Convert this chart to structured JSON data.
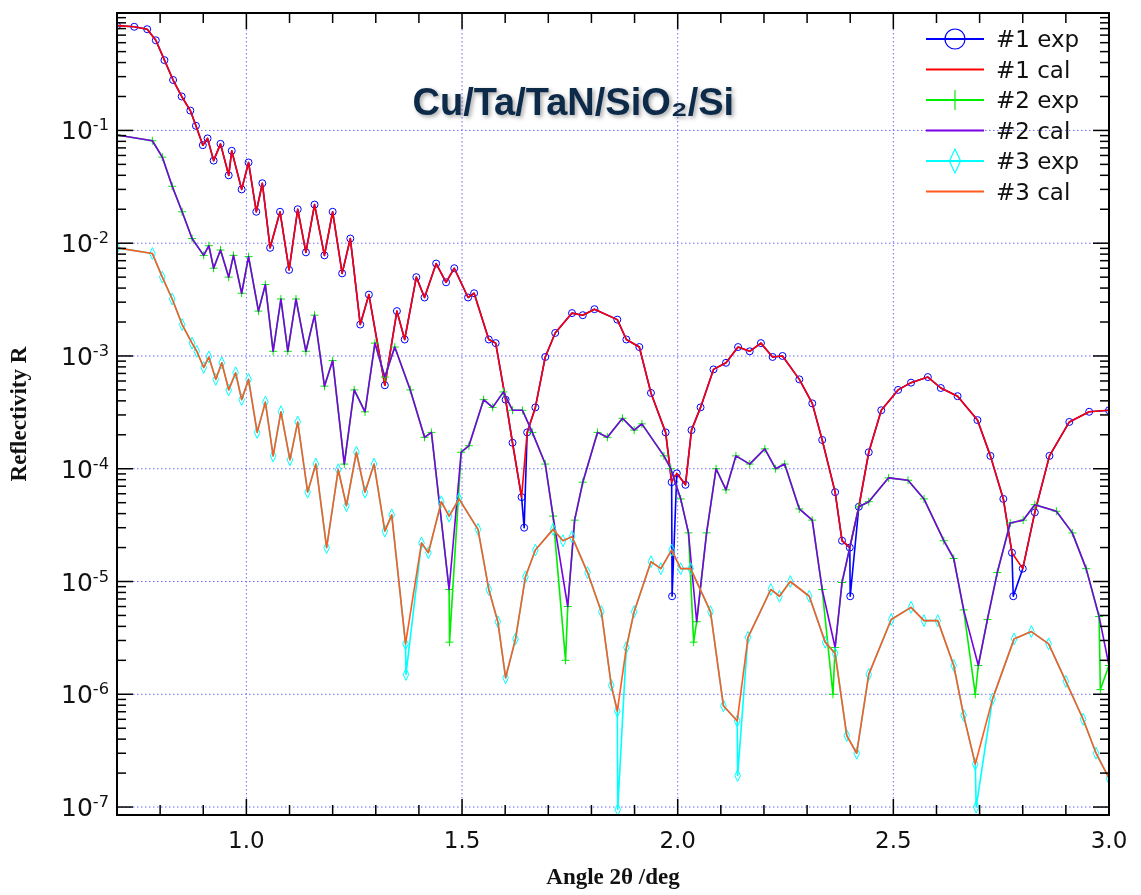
{
  "chart_data": {
    "type": "line",
    "title": "Cu/Ta/TaN/SiO₂/Si",
    "xlabel": "Angle 2θ /deg",
    "ylabel": "Reflectivity R",
    "log": "y",
    "grid": true,
    "legend": "top right",
    "xlim": [
      0.7,
      3.0
    ],
    "ylim": [
      8.5e-08,
      1.1
    ],
    "xticks": [
      {
        "value": 0.7,
        "label": null
      },
      {
        "value": 0.8,
        "label": null
      },
      {
        "value": 0.9,
        "label": null
      },
      {
        "value": 1.0,
        "label": "1.0"
      },
      {
        "value": 1.1,
        "label": null
      },
      {
        "value": 1.2,
        "label": null
      },
      {
        "value": 1.3,
        "label": null
      },
      {
        "value": 1.4,
        "label": null
      },
      {
        "value": 1.5,
        "label": "1.5"
      },
      {
        "value": 1.6,
        "label": null
      },
      {
        "value": 1.7,
        "label": null
      },
      {
        "value": 1.8,
        "label": null
      },
      {
        "value": 1.9,
        "label": null
      },
      {
        "value": 2.0,
        "label": "2.0"
      },
      {
        "value": 2.1,
        "label": null
      },
      {
        "value": 2.2,
        "label": null
      },
      {
        "value": 2.3,
        "label": null
      },
      {
        "value": 2.4,
        "label": null
      },
      {
        "value": 2.5,
        "label": "2.5"
      },
      {
        "value": 2.6,
        "label": null
      },
      {
        "value": 2.7,
        "label": null
      },
      {
        "value": 2.8,
        "label": null
      },
      {
        "value": 2.9,
        "label": null
      },
      {
        "value": 3.0,
        "label": "3.0"
      }
    ],
    "yticks": [
      {
        "value": 1e-07,
        "label": "10$^{-7}$"
      },
      {
        "value": 2e-07,
        "label": null
      },
      {
        "value": 3e-07,
        "label": null
      },
      {
        "value": 4e-07,
        "label": null
      },
      {
        "value": 5e-07,
        "label": null
      },
      {
        "value": 6e-07,
        "label": null
      },
      {
        "value": 7e-07,
        "label": null
      },
      {
        "value": 8e-07,
        "label": null
      },
      {
        "value": 9e-07,
        "label": null
      },
      {
        "value": 1e-06,
        "label": "10$^{-6}$"
      },
      {
        "value": 2e-06,
        "label": null
      },
      {
        "value": 3e-06,
        "label": null
      },
      {
        "value": 4e-06,
        "label": null
      },
      {
        "value": 5e-06,
        "label": null
      },
      {
        "value": 6e-06,
        "label": null
      },
      {
        "value": 7e-06,
        "label": null
      },
      {
        "value": 8e-06,
        "label": null
      },
      {
        "value": 9e-06,
        "label": null
      },
      {
        "value": 1e-05,
        "label": "10$^{-5}$"
      },
      {
        "value": 2e-05,
        "label": null
      },
      {
        "value": 3e-05,
        "label": null
      },
      {
        "value": 4e-05,
        "label": null
      },
      {
        "value": 5e-05,
        "label": null
      },
      {
        "value": 6e-05,
        "label": null
      },
      {
        "value": 7e-05,
        "label": null
      },
      {
        "value": 8e-05,
        "label": null
      },
      {
        "value": 9e-05,
        "label": null
      },
      {
        "value": 0.0001,
        "label": "10$^{-4}$"
      },
      {
        "value": 0.0002,
        "label": null
      },
      {
        "value": 0.0003,
        "label": null
      },
      {
        "value": 0.0004,
        "label": null
      },
      {
        "value": 0.0005,
        "label": null
      },
      {
        "value": 0.0006,
        "label": null
      },
      {
        "value": 0.0007,
        "label": null
      },
      {
        "value": 0.0008,
        "label": null
      },
      {
        "value": 0.0009,
        "label": null
      },
      {
        "value": 0.001,
        "label": "10$^{-3}$"
      },
      {
        "value": 0.002,
        "label": null
      },
      {
        "value": 0.003,
        "label": null
      },
      {
        "value": 0.004,
        "label": null
      },
      {
        "value": 0.005,
        "label": null
      },
      {
        "value": 0.006,
        "label": null
      },
      {
        "value": 0.007,
        "label": null
      },
      {
        "value": 0.008,
        "label": null
      },
      {
        "value": 0.009,
        "label": null
      },
      {
        "value": 0.01,
        "label": "10$^{-2}$"
      },
      {
        "value": 0.02,
        "label": null
      },
      {
        "value": 0.03,
        "label": null
      },
      {
        "value": 0.04,
        "label": null
      },
      {
        "value": 0.05,
        "label": null
      },
      {
        "value": 0.06,
        "label": null
      },
      {
        "value": 0.07,
        "label": null
      },
      {
        "value": 0.08,
        "label": null
      },
      {
        "value": 0.09,
        "label": null
      },
      {
        "value": 0.1,
        "label": "10$^{-1}$"
      },
      {
        "value": 0.2,
        "label": null
      },
      {
        "value": 0.3,
        "label": null
      },
      {
        "value": 0.4,
        "label": null
      },
      {
        "value": 0.5,
        "label": null
      },
      {
        "value": 0.6,
        "label": null
      },
      {
        "value": 0.7,
        "label": null
      },
      {
        "value": 0.8,
        "label": null
      },
      {
        "value": 0.9,
        "label": null
      },
      {
        "value": 1,
        "label": null
      }
    ],
    "series": [
      {
        "name": "#1 exp",
        "color": "#0000ff",
        "marker": "circle",
        "x": [
          0.7,
          0.74,
          0.77,
          0.79,
          0.81,
          0.83,
          0.85,
          0.87,
          0.883,
          0.899,
          0.91,
          0.924,
          0.94,
          0.959,
          0.966,
          0.989,
          1.005,
          1.023,
          1.037,
          1.055,
          1.078,
          1.099,
          1.119,
          1.138,
          1.158,
          1.181,
          1.2,
          1.222,
          1.241,
          1.264,
          1.284,
          1.321,
          1.349,
          1.367,
          1.394,
          1.413,
          1.44,
          1.463,
          1.482,
          1.514,
          1.528,
          1.562,
          1.578,
          1.601,
          1.617,
          1.638,
          1.644,
          1.651,
          1.67,
          1.693,
          1.716,
          1.755,
          1.78,
          1.807,
          1.86,
          1.881,
          1.911,
          1.938,
          1.972,
          1.986,
          1.987,
          1.998,
          2.018,
          2.032,
          2.053,
          2.083,
          2.112,
          2.14,
          2.167,
          2.193,
          2.22,
          2.243,
          2.282,
          2.312,
          2.335,
          2.365,
          2.381,
          2.399,
          2.4,
          2.42,
          2.443,
          2.472,
          2.511,
          2.541,
          2.58,
          2.61,
          2.649,
          2.695,
          2.725,
          2.755,
          2.775,
          2.778,
          2.8,
          2.828,
          2.862,
          2.908,
          2.954,
          3.0
        ],
        "values": [
          0.85,
          0.83,
          0.79,
          0.63,
          0.42,
          0.28,
          0.2,
          0.15,
          0.11,
          0.074,
          0.085,
          0.054,
          0.076,
          0.04,
          0.066,
          0.03,
          0.052,
          0.019,
          0.034,
          0.0091,
          0.019,
          0.0058,
          0.02,
          0.0083,
          0.022,
          0.0078,
          0.019,
          0.0054,
          0.011,
          0.0019,
          0.0035,
          0.00055,
          0.0025,
          0.0014,
          0.005,
          0.0033,
          0.0066,
          0.0045,
          0.006,
          0.0033,
          0.0036,
          0.0014,
          0.0013,
          0.00041,
          0.00017,
          5.6e-05,
          3e-05,
          0.00021,
          0.00035,
          0.00098,
          0.0016,
          0.0024,
          0.0023,
          0.0026,
          0.0021,
          0.0014,
          0.0012,
          0.00047,
          0.00021,
          7.6e-05,
          7.4e-06,
          9.1e-05,
          7.2e-05,
          0.00022,
          0.00035,
          0.00076,
          0.00087,
          0.0012,
          0.0011,
          0.0013,
          0.00098,
          0.001,
          0.00062,
          0.00038,
          0.00018,
          6.2e-05,
          2.3e-05,
          2e-05,
          7.4e-06,
          4.6e-05,
          0.00014,
          0.00033,
          0.0005,
          0.00058,
          0.00065,
          0.00052,
          0.00044,
          0.00027,
          0.00013,
          5.4e-05,
          1.8e-05,
          7.4e-06,
          1.3e-05,
          4.1e-05,
          0.00013,
          0.00026,
          0.00032,
          0.00033
        ]
      },
      {
        "name": "#1 cal",
        "color": "#ff0000",
        "marker": "none",
        "x": [
          0.7,
          0.74,
          0.77,
          0.79,
          0.81,
          0.83,
          0.85,
          0.87,
          0.883,
          0.899,
          0.91,
          0.924,
          0.94,
          0.959,
          0.966,
          0.989,
          1.005,
          1.023,
          1.037,
          1.055,
          1.078,
          1.099,
          1.119,
          1.138,
          1.158,
          1.181,
          1.2,
          1.222,
          1.241,
          1.264,
          1.284,
          1.321,
          1.349,
          1.367,
          1.394,
          1.413,
          1.44,
          1.463,
          1.482,
          1.514,
          1.528,
          1.562,
          1.578,
          1.601,
          1.617,
          1.638,
          1.651,
          1.67,
          1.693,
          1.716,
          1.755,
          1.78,
          1.807,
          1.86,
          1.881,
          1.911,
          1.938,
          1.972,
          1.986,
          1.998,
          2.018,
          2.032,
          2.053,
          2.083,
          2.112,
          2.14,
          2.167,
          2.193,
          2.22,
          2.243,
          2.282,
          2.312,
          2.335,
          2.365,
          2.381,
          2.399,
          2.42,
          2.443,
          2.472,
          2.511,
          2.541,
          2.58,
          2.61,
          2.649,
          2.695,
          2.725,
          2.755,
          2.775,
          2.8,
          2.828,
          2.862,
          2.908,
          2.954,
          3.0
        ],
        "values": [
          0.85,
          0.83,
          0.79,
          0.63,
          0.42,
          0.28,
          0.2,
          0.15,
          0.11,
          0.074,
          0.085,
          0.054,
          0.076,
          0.04,
          0.066,
          0.03,
          0.052,
          0.019,
          0.034,
          0.0091,
          0.019,
          0.0058,
          0.02,
          0.0083,
          0.022,
          0.0078,
          0.019,
          0.0054,
          0.011,
          0.0019,
          0.0035,
          0.00055,
          0.0025,
          0.0014,
          0.005,
          0.0033,
          0.0066,
          0.0045,
          0.006,
          0.0033,
          0.0036,
          0.0014,
          0.0013,
          0.00041,
          0.00017,
          5.6e-05,
          0.00021,
          0.00035,
          0.00098,
          0.0016,
          0.0024,
          0.0023,
          0.0026,
          0.0021,
          0.0014,
          0.0012,
          0.00047,
          0.00021,
          7.6e-05,
          9.1e-05,
          7.2e-05,
          0.00022,
          0.00035,
          0.00076,
          0.00087,
          0.0012,
          0.0011,
          0.0013,
          0.00098,
          0.001,
          0.00062,
          0.00038,
          0.00018,
          6.2e-05,
          2.3e-05,
          2e-05,
          4.6e-05,
          0.00014,
          0.00033,
          0.0005,
          0.00058,
          0.00065,
          0.00052,
          0.00044,
          0.00027,
          0.00013,
          5.4e-05,
          1.8e-05,
          1.3e-05,
          4.1e-05,
          0.00013,
          0.00026,
          0.00032,
          0.00033
        ]
      },
      {
        "name": "#2 exp",
        "color": "#00ee00",
        "marker": "cross",
        "x": [
          0.7,
          0.782,
          0.805,
          0.828,
          0.851,
          0.874,
          0.901,
          0.913,
          0.924,
          0.94,
          0.959,
          0.97,
          0.989,
          1.005,
          1.028,
          1.044,
          1.062,
          1.08,
          1.096,
          1.115,
          1.138,
          1.158,
          1.181,
          1.2,
          1.227,
          1.25,
          1.275,
          1.298,
          1.321,
          1.344,
          1.38,
          1.413,
          1.429,
          1.47,
          1.471,
          1.498,
          1.516,
          1.55,
          1.571,
          1.596,
          1.617,
          1.64,
          1.663,
          1.693,
          1.711,
          1.74,
          1.745,
          1.761,
          1.78,
          1.814,
          1.837,
          1.872,
          1.899,
          1.917,
          1.968,
          1.984,
          2.007,
          2.025,
          2.037,
          2.044,
          2.067,
          2.089,
          2.112,
          2.135,
          2.167,
          2.202,
          2.227,
          2.248,
          2.282,
          2.312,
          2.335,
          2.36,
          2.365,
          2.381,
          2.42,
          2.443,
          2.489,
          2.534,
          2.571,
          2.617,
          2.64,
          2.663,
          2.69,
          2.697,
          2.718,
          2.741,
          2.771,
          2.801,
          2.828,
          2.878,
          2.915,
          2.947,
          2.977,
          2.98,
          3.0
        ],
        "values": [
          0.091,
          0.081,
          0.058,
          0.032,
          0.019,
          0.011,
          0.0078,
          0.0095,
          0.006,
          0.0087,
          0.005,
          0.0078,
          0.0036,
          0.0076,
          0.0025,
          0.0043,
          0.0011,
          0.0032,
          0.0011,
          0.0032,
          0.0011,
          0.0023,
          0.00054,
          0.00091,
          0.00011,
          0.0005,
          0.00032,
          0.0013,
          0.00065,
          0.0012,
          0.0005,
          0.00019,
          0.00021,
          8.5e-06,
          2.9e-06,
          0.00014,
          0.00016,
          0.00041,
          0.00035,
          0.00048,
          0.00033,
          0.00033,
          0.00021,
          0.00011,
          3.8e-05,
          2e-06,
          6e-06,
          3.5e-05,
          7.6e-05,
          0.00021,
          0.00019,
          0.00028,
          0.00022,
          0.00025,
          0.00013,
          0.0001,
          5.4e-05,
          2.7e-05,
          2.9e-06,
          4.4e-06,
          2.7e-05,
          0.0001,
          6.5e-05,
          0.00013,
          0.00011,
          0.00015,
          0.0001,
          0.00011,
          4.4e-05,
          3.5e-05,
          8.5e-06,
          1e-06,
          2.6e-06,
          9.8e-06,
          4.6e-05,
          5.1e-05,
          8.3e-05,
          7.9e-05,
          5.4e-05,
          2.3e-05,
          1.6e-05,
          5.6e-06,
          1e-06,
          1.8e-06,
          4.6e-06,
          1.2e-05,
          3.3e-05,
          3.5e-05,
          4.8e-05,
          4.2e-05,
          2.7e-05,
          1.3e-05,
          4.9e-06,
          1.1e-06,
          1.8e-06
        ]
      },
      {
        "name": "#2 cal",
        "color": "#7a00e6",
        "marker": "none",
        "x": [
          0.7,
          0.782,
          0.805,
          0.828,
          0.851,
          0.874,
          0.901,
          0.913,
          0.924,
          0.94,
          0.959,
          0.97,
          0.989,
          1.005,
          1.028,
          1.044,
          1.062,
          1.08,
          1.096,
          1.115,
          1.138,
          1.158,
          1.181,
          1.2,
          1.227,
          1.25,
          1.275,
          1.298,
          1.321,
          1.344,
          1.38,
          1.413,
          1.429,
          1.47,
          1.498,
          1.516,
          1.55,
          1.571,
          1.596,
          1.617,
          1.64,
          1.663,
          1.693,
          1.711,
          1.745,
          1.761,
          1.78,
          1.814,
          1.837,
          1.872,
          1.899,
          1.917,
          1.968,
          1.984,
          2.007,
          2.025,
          2.044,
          2.067,
          2.089,
          2.112,
          2.135,
          2.167,
          2.202,
          2.227,
          2.248,
          2.282,
          2.312,
          2.335,
          2.365,
          2.381,
          2.42,
          2.443,
          2.489,
          2.534,
          2.571,
          2.617,
          2.64,
          2.663,
          2.697,
          2.718,
          2.741,
          2.771,
          2.801,
          2.828,
          2.878,
          2.915,
          2.947,
          2.977,
          3.0
        ],
        "values": [
          0.091,
          0.081,
          0.058,
          0.032,
          0.019,
          0.011,
          0.0078,
          0.0095,
          0.006,
          0.0087,
          0.005,
          0.0078,
          0.0036,
          0.0076,
          0.0025,
          0.0043,
          0.0011,
          0.0032,
          0.0011,
          0.0032,
          0.0011,
          0.0023,
          0.00054,
          0.00091,
          0.00011,
          0.0005,
          0.00032,
          0.0013,
          0.00065,
          0.0012,
          0.0005,
          0.00019,
          0.00021,
          8.5e-06,
          0.00014,
          0.00016,
          0.00041,
          0.00035,
          0.00048,
          0.00033,
          0.00033,
          0.00021,
          0.00011,
          3.8e-05,
          6e-06,
          3.5e-05,
          7.6e-05,
          0.00021,
          0.00019,
          0.00028,
          0.00022,
          0.00025,
          0.00013,
          0.0001,
          5.4e-05,
          2.7e-05,
          4.4e-06,
          2.7e-05,
          0.0001,
          6.5e-05,
          0.00013,
          0.00011,
          0.00015,
          0.0001,
          0.00011,
          4.4e-05,
          3.5e-05,
          8.5e-06,
          2.6e-06,
          9.8e-06,
          4.6e-05,
          5.1e-05,
          8.3e-05,
          7.9e-05,
          5.4e-05,
          2.3e-05,
          1.6e-05,
          5.6e-06,
          1.8e-06,
          4.6e-06,
          1.2e-05,
          3.3e-05,
          3.5e-05,
          4.8e-05,
          4.2e-05,
          2.7e-05,
          1.3e-05,
          4.9e-06,
          1.8e-06
        ]
      },
      {
        "name": "#3 exp",
        "color": "#00ffff",
        "marker": "diamond",
        "x": [
          0.7,
          0.782,
          0.805,
          0.828,
          0.851,
          0.874,
          0.885,
          0.901,
          0.913,
          0.929,
          0.943,
          0.959,
          0.975,
          0.989,
          1.005,
          1.025,
          1.044,
          1.062,
          1.08,
          1.101,
          1.119,
          1.142,
          1.161,
          1.186,
          1.213,
          1.232,
          1.255,
          1.275,
          1.296,
          1.321,
          1.337,
          1.369,
          1.37,
          1.406,
          1.422,
          1.452,
          1.47,
          1.493,
          1.537,
          1.562,
          1.583,
          1.601,
          1.624,
          1.647,
          1.67,
          1.711,
          1.734,
          1.755,
          1.791,
          1.823,
          1.846,
          1.86,
          1.861,
          1.881,
          1.899,
          1.938,
          1.961,
          1.986,
          2.007,
          2.03,
          2.076,
          2.106,
          2.138,
          2.139,
          2.163,
          2.216,
          2.236,
          2.261,
          2.305,
          2.342,
          2.365,
          2.392,
          2.415,
          2.443,
          2.495,
          2.541,
          2.571,
          2.603,
          2.64,
          2.663,
          2.69,
          2.692,
          2.73,
          2.78,
          2.82,
          2.86,
          2.9,
          2.94,
          2.97,
          3.0
        ],
        "values": [
          0.0091,
          0.0081,
          0.005,
          0.0032,
          0.0019,
          0.0013,
          0.0011,
          0.00079,
          0.00098,
          0.00062,
          0.00087,
          0.0005,
          0.00071,
          0.00041,
          0.00062,
          0.00021,
          0.00039,
          0.00013,
          0.00032,
          0.00012,
          0.00026,
          6.2e-05,
          0.00011,
          2e-05,
          9.8e-05,
          4.7e-05,
          0.00014,
          6.2e-05,
          0.00011,
          2.8e-05,
          3.9e-05,
          2.8e-06,
          1.5e-06,
          2.2e-05,
          1.8e-05,
          5.1e-05,
          3.8e-05,
          5.4e-05,
          2.9e-05,
          8.5e-06,
          4.4e-06,
          1.4e-06,
          3.1e-06,
          1.1e-05,
          1.9e-05,
          2.9e-05,
          2.3e-05,
          2.5e-05,
          1.2e-05,
          5.4e-06,
          1.2e-06,
          7.1e-07,
          9.5e-08,
          2.6e-06,
          5.4e-06,
          1.5e-05,
          1.3e-05,
          1.9e-05,
          1.3e-05,
          1.3e-05,
          5.4e-06,
          7.9e-07,
          5.8e-07,
          1.9e-07,
          3.2e-06,
          8.5e-06,
          7.4e-06,
          1e-05,
          7.4e-06,
          2.9e-06,
          2.3e-06,
          4.3e-07,
          3e-07,
          1.5e-06,
          4.6e-06,
          5.9e-06,
          4.5e-06,
          4.5e-06,
          1.8e-06,
          6.5e-07,
          2.4e-07,
          1e-07,
          9.1e-07,
          3.1e-06,
          3.6e-06,
          2.8e-06,
          1.3e-06,
          6e-07,
          3e-07,
          1.8e-07
        ]
      },
      {
        "name": "#3 cal",
        "color": "#ff5a1f",
        "marker": "none",
        "x": [
          0.7,
          0.782,
          0.805,
          0.828,
          0.851,
          0.874,
          0.885,
          0.901,
          0.913,
          0.929,
          0.943,
          0.959,
          0.975,
          0.989,
          1.005,
          1.025,
          1.044,
          1.062,
          1.08,
          1.101,
          1.119,
          1.142,
          1.161,
          1.186,
          1.213,
          1.232,
          1.255,
          1.275,
          1.296,
          1.321,
          1.337,
          1.369,
          1.406,
          1.422,
          1.452,
          1.47,
          1.493,
          1.537,
          1.562,
          1.583,
          1.601,
          1.624,
          1.647,
          1.67,
          1.711,
          1.734,
          1.755,
          1.791,
          1.823,
          1.846,
          1.86,
          1.881,
          1.899,
          1.938,
          1.961,
          1.986,
          2.007,
          2.03,
          2.076,
          2.106,
          2.138,
          2.163,
          2.216,
          2.236,
          2.261,
          2.305,
          2.342,
          2.365,
          2.392,
          2.415,
          2.443,
          2.495,
          2.541,
          2.571,
          2.603,
          2.64,
          2.663,
          2.69,
          2.73,
          2.78,
          2.82,
          2.86,
          2.9,
          2.94,
          2.97,
          3.0
        ],
        "values": [
          0.0091,
          0.0081,
          0.005,
          0.0032,
          0.0019,
          0.0013,
          0.0011,
          0.00079,
          0.00098,
          0.00062,
          0.00087,
          0.0005,
          0.00071,
          0.00041,
          0.00062,
          0.00021,
          0.00039,
          0.00013,
          0.00032,
          0.00012,
          0.00026,
          6.2e-05,
          0.00011,
          2e-05,
          9.8e-05,
          4.7e-05,
          0.00014,
          6.2e-05,
          0.00011,
          2.8e-05,
          3.9e-05,
          2.8e-06,
          2.2e-05,
          1.8e-05,
          5.1e-05,
          3.8e-05,
          5.4e-05,
          2.9e-05,
          8.5e-06,
          4.4e-06,
          1.4e-06,
          3.1e-06,
          1.1e-05,
          1.9e-05,
          2.9e-05,
          2.3e-05,
          2.5e-05,
          1.2e-05,
          5.4e-06,
          1.2e-06,
          7.1e-07,
          2.6e-06,
          5.4e-06,
          1.5e-05,
          1.3e-05,
          1.9e-05,
          1.3e-05,
          1.3e-05,
          5.4e-06,
          7.9e-07,
          5.8e-07,
          3.2e-06,
          8.5e-06,
          7.4e-06,
          1e-05,
          7.4e-06,
          2.9e-06,
          2.3e-06,
          4.3e-07,
          3e-07,
          1.5e-06,
          4.6e-06,
          5.9e-06,
          4.5e-06,
          4.5e-06,
          1.8e-06,
          6.5e-07,
          2.4e-07,
          9.1e-07,
          3.1e-06,
          3.6e-06,
          2.8e-06,
          1.3e-06,
          6e-07,
          3e-07,
          1.8e-07
        ]
      }
    ]
  }
}
